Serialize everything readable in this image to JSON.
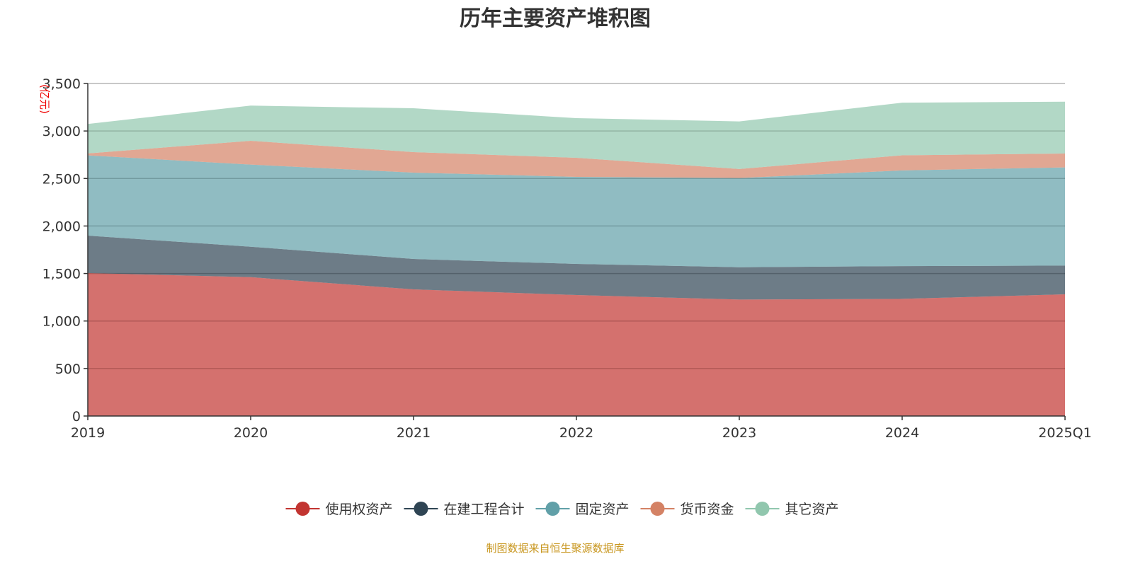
{
  "chart_data": {
    "type": "area",
    "stacked": true,
    "title": "历年主要资产堆积图",
    "ylabel": "(亿元)",
    "xlabel": "",
    "categories": [
      "2019",
      "2020",
      "2021",
      "2022",
      "2023",
      "2024",
      "2025Q1"
    ],
    "ylim": [
      0,
      3500
    ],
    "yticks": [
      0,
      500,
      1000,
      1500,
      2000,
      2500,
      3000,
      3500
    ],
    "ytick_labels": [
      "0",
      "500",
      "1,000",
      "1,500",
      "2,000",
      "2,500",
      "3,000",
      "3,500"
    ],
    "grid": true,
    "legend_position": "bottom",
    "series": [
      {
        "name": "使用权资产",
        "color": "#c23531",
        "values": [
          1505,
          1461,
          1333,
          1273,
          1226,
          1233,
          1281
        ]
      },
      {
        "name": "在建工程合计",
        "color": "#2f4554",
        "values": [
          394,
          321,
          320,
          328,
          340,
          345,
          302
        ]
      },
      {
        "name": "固定资产",
        "color": "#61a0a8",
        "values": [
          845,
          864,
          909,
          916,
          939,
          1007,
          1034
        ]
      },
      {
        "name": "货币资金",
        "color": "#d48265",
        "values": [
          20,
          251,
          216,
          201,
          95,
          159,
          146
        ]
      },
      {
        "name": "其它资产",
        "color": "#91c7ae",
        "values": [
          310,
          370,
          461,
          417,
          501,
          554,
          545
        ]
      }
    ],
    "source": "制图数据来自恒生聚源数据库"
  }
}
